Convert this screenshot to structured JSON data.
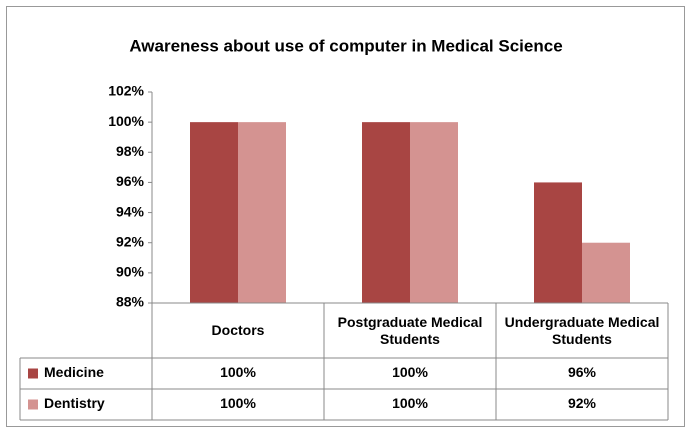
{
  "chart_data": {
    "type": "bar",
    "title": "Awareness about use of computer in Medical Science",
    "categories": [
      "Doctors",
      "Postgraduate Medical Students",
      "Undergraduate Medical Students"
    ],
    "series": [
      {
        "name": "Medicine",
        "color": "#a84543",
        "values": [
          100,
          100,
          96
        ],
        "value_labels": [
          "100%",
          "100%",
          "96%"
        ]
      },
      {
        "name": "Dentistry",
        "color": "#d49391",
        "values": [
          100,
          100,
          92
        ],
        "value_labels": [
          "100%",
          "100%",
          "92%"
        ]
      }
    ],
    "ylim": [
      88,
      102
    ],
    "yticks": [
      {
        "value": 88,
        "label": "88%"
      },
      {
        "value": 90,
        "label": "90%"
      },
      {
        "value": 92,
        "label": "92%"
      },
      {
        "value": 94,
        "label": "94%"
      },
      {
        "value": 96,
        "label": "96%"
      },
      {
        "value": 98,
        "label": "98%"
      },
      {
        "value": 100,
        "label": "100%"
      },
      {
        "value": 102,
        "label": "102%"
      }
    ],
    "grid": false
  }
}
